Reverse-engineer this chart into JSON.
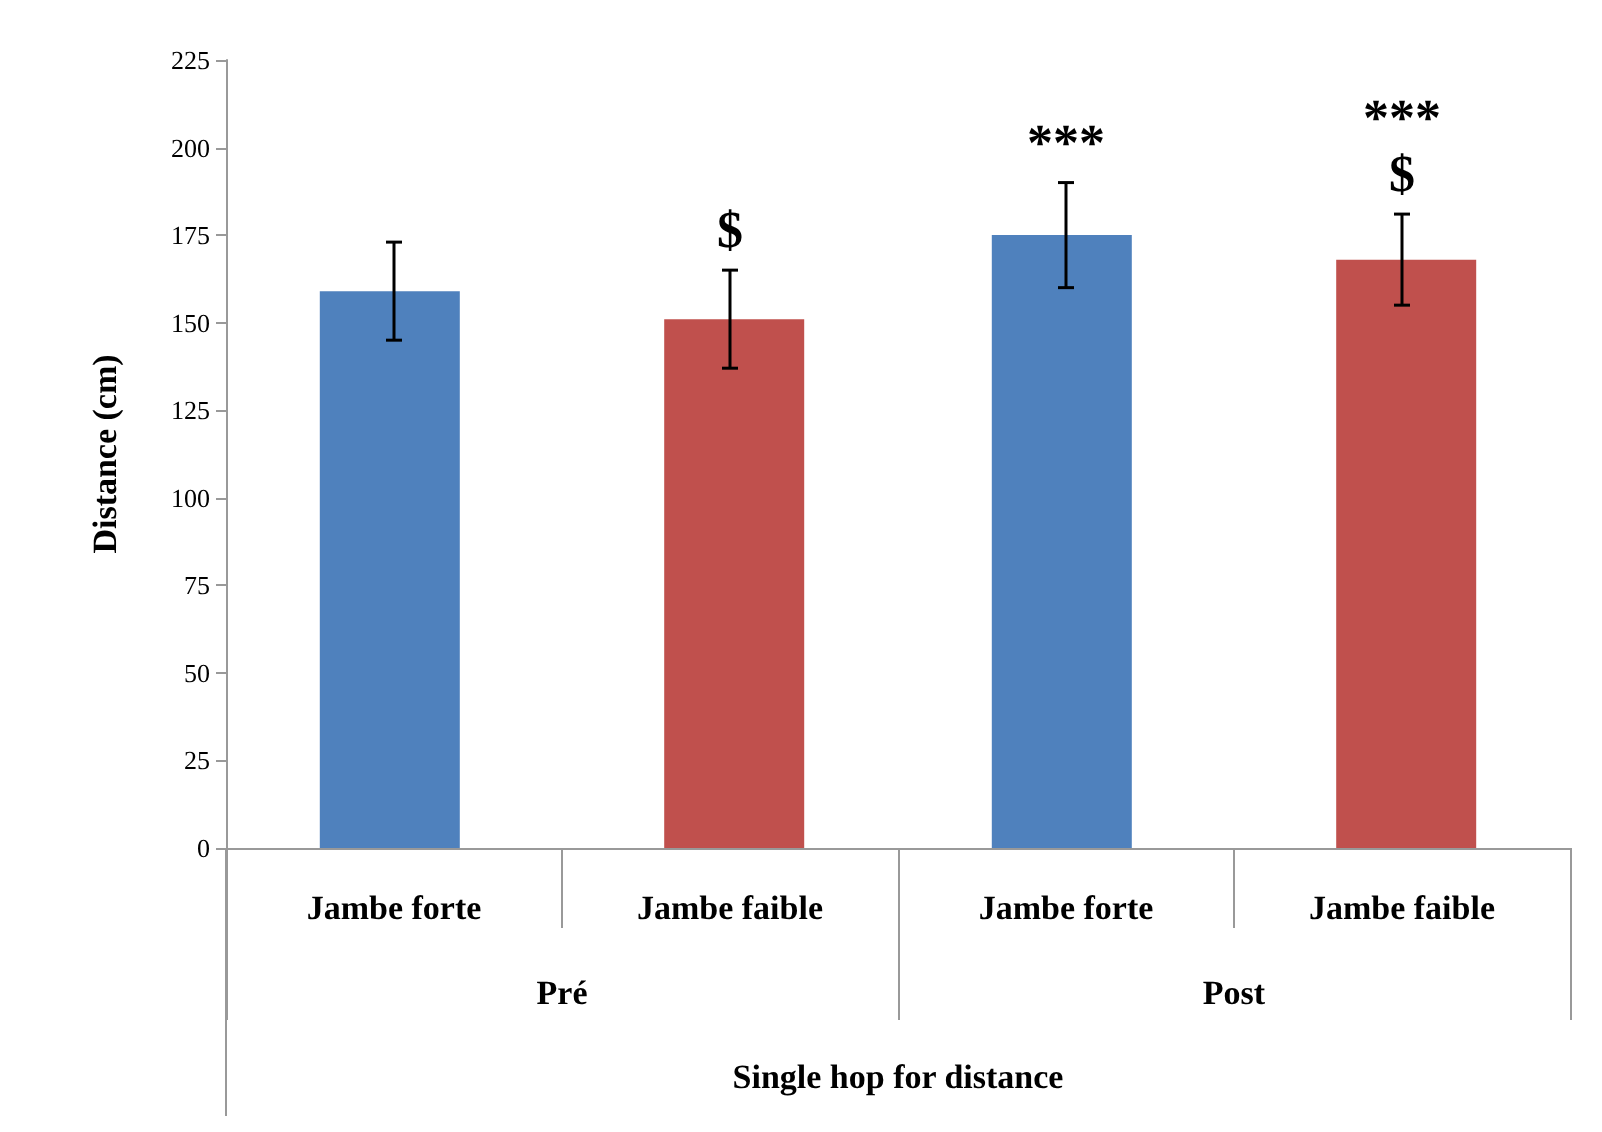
{
  "chart_data": {
    "type": "bar",
    "xlabel": "Single hop for distance",
    "ylabel": "Distance (cm)",
    "categories": [
      "Pré",
      "Post"
    ],
    "series": [
      {
        "name": "Jambe forte",
        "color": "#4f81bd",
        "values": [
          159,
          175
        ],
        "errors": [
          14,
          15
        ]
      },
      {
        "name": "Jambe faible",
        "color": "#c0504d",
        "values": [
          151,
          168
        ],
        "errors": [
          14,
          13
        ]
      }
    ],
    "annotations": [
      "$",
      "***",
      "$",
      "***"
    ],
    "ylim": [
      0,
      225
    ],
    "yticks": [
      0,
      25,
      50,
      75,
      100,
      125,
      150,
      175,
      200,
      225
    ],
    "grid": false,
    "legend": false
  }
}
